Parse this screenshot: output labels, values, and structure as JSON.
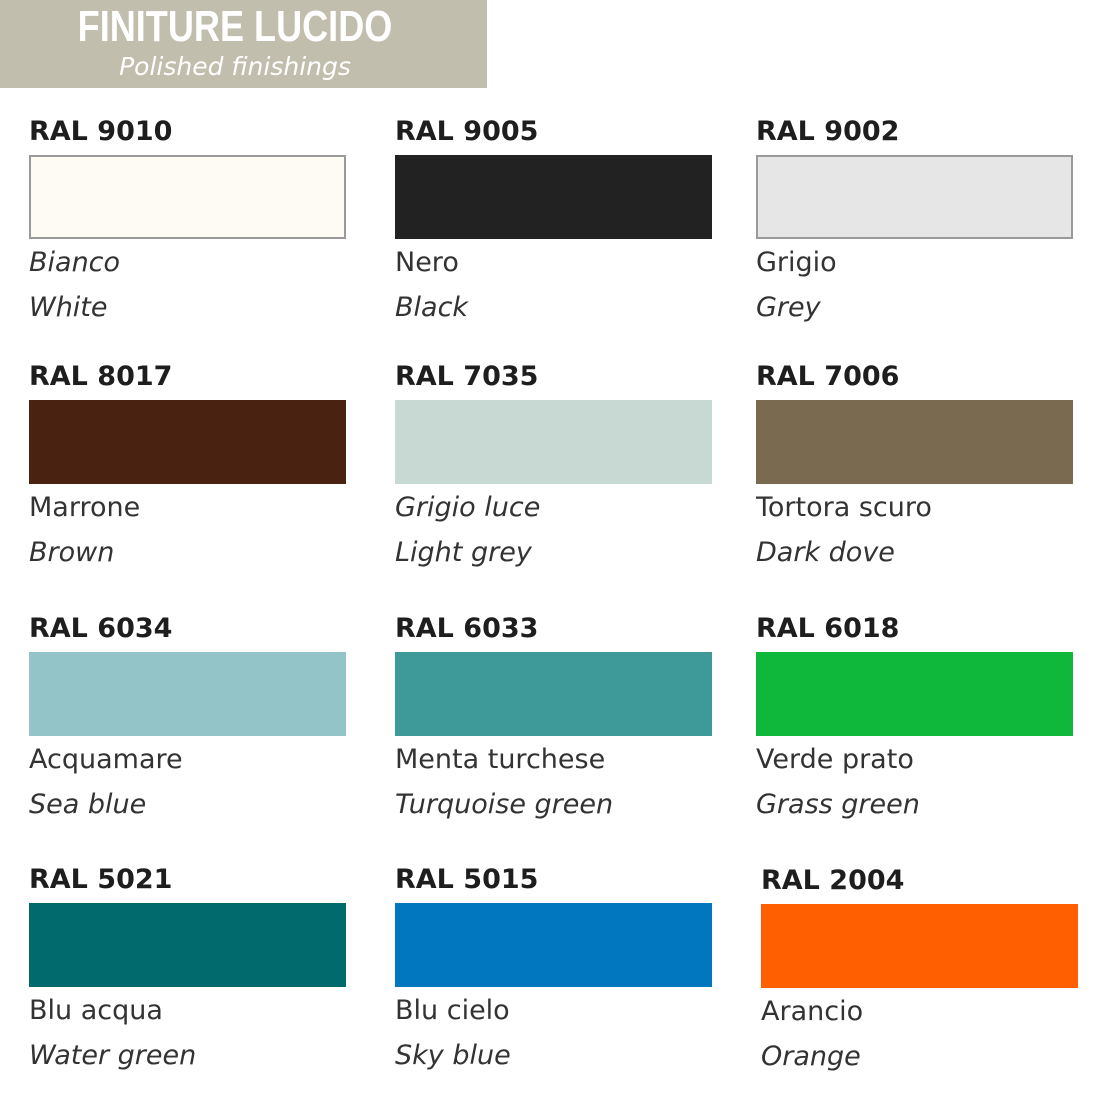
{
  "header": {
    "title": "FINITURE LUCIDO",
    "subtitle": "Polished finishings",
    "color": "#c2bead"
  },
  "colors": [
    {
      "code": "RAL 9010",
      "it": "Bianco",
      "en": "White",
      "hex": "#fdfbf4",
      "it_italic": true,
      "bordered": true
    },
    {
      "code": "RAL 9005",
      "it": "Nero",
      "en": "Black",
      "hex": "#222222"
    },
    {
      "code": "RAL 9002",
      "it": "Grigio",
      "en": "Grey",
      "hex": "#e6e6e6",
      "bordered": true
    },
    {
      "code": "RAL 8017",
      "it": "Marrone",
      "en": "Brown",
      "hex": "#4a2211"
    },
    {
      "code": "RAL 7035",
      "it": "Grigio luce",
      "en": "Light grey",
      "hex": "#c8d9d4",
      "it_italic": true
    },
    {
      "code": "RAL 7006",
      "it": "Tortora scuro",
      "en": "Dark dove",
      "hex": "#7a6a4f"
    },
    {
      "code": "RAL 6034",
      "it": "Acquamare",
      "en": "Sea blue",
      "hex": "#93c4c8"
    },
    {
      "code": "RAL 6033",
      "it": "Menta turchese",
      "en": "Turquoise green",
      "hex": "#3e9a98"
    },
    {
      "code": "RAL 6018",
      "it": "Verde prato",
      "en": "Grass green",
      "hex": "#0fb83a"
    },
    {
      "code": "RAL 5021",
      "it": "Blu acqua",
      "en": "Water green",
      "hex": "#006a6c"
    },
    {
      "code": "RAL 5015",
      "it": "Blu cielo",
      "en": "Sky blue",
      "hex": "#0077bf"
    },
    {
      "code": "RAL 2004",
      "it": "Arancio",
      "en": "Orange",
      "hex": "#ff5f00"
    }
  ]
}
